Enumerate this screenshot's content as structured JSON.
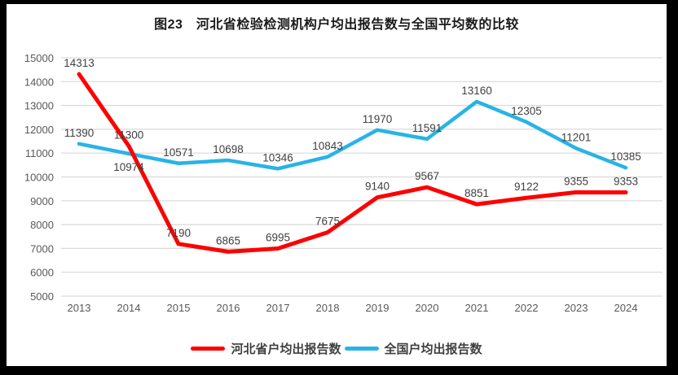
{
  "chart_data": {
    "type": "line",
    "title": "图23　河北省检验检测机构户均出报告数与全国平均数的比较",
    "categories": [
      "2013",
      "2014",
      "2015",
      "2016",
      "2017",
      "2018",
      "2019",
      "2020",
      "2021",
      "2022",
      "2023",
      "2024"
    ],
    "series": [
      {
        "name": "河北省户均出报告数",
        "color": "#fe0000",
        "line_width": 5,
        "values": [
          14313,
          11300,
          7190,
          6865,
          6995,
          7675,
          9140,
          9567,
          8851,
          9122,
          9355,
          9353
        ],
        "label_positions": [
          "above",
          "above",
          "above",
          "above",
          "above",
          "above",
          "above",
          "above",
          "above",
          "above",
          "above",
          "above"
        ]
      },
      {
        "name": "全国户均出报告数",
        "color": "#29b3e7",
        "line_width": 4.5,
        "values": [
          11390,
          10974,
          10571,
          10698,
          10346,
          10843,
          11970,
          11591,
          13160,
          12305,
          11201,
          10385
        ],
        "label_positions": [
          "above",
          "below",
          "above",
          "above",
          "above",
          "above",
          "above",
          "above",
          "above",
          "above",
          "above",
          "above"
        ]
      }
    ],
    "xlabel": "",
    "ylabel": "",
    "ylim": [
      5000,
      15000
    ],
    "ytick_step": 1000,
    "grid": true,
    "legend_position": "bottom",
    "draw_order": [
      1,
      0
    ],
    "colors": {
      "grid": "#d9d9d9",
      "tick_text": "#595959",
      "data_label_text": "#404040",
      "title_text": "#1a1a1a",
      "frame": "#000000",
      "background": "#ffffff"
    }
  }
}
